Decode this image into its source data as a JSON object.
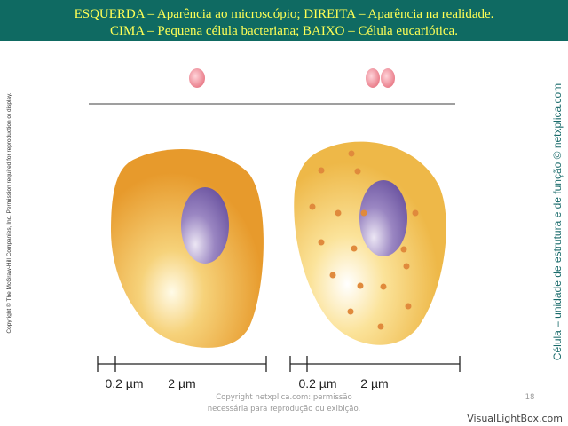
{
  "header": {
    "lines": [
      "ESQUERDA – Aparência ao microscópio; DIREITA – Aparência na realidade.",
      "CIMA – Pequena célula bacteriana; BAIXO – Célula eucariótica."
    ]
  },
  "copyright_side": "Copyright © The McGraw-Hill Companies, Inc. Permission required for reproduction or display.",
  "side_title": "Célula – unidade de estrutura e de função © netxplica.com",
  "scales": [
    {
      "labels": [
        "0.2 µm",
        "2 µm"
      ]
    },
    {
      "labels": [
        "0.2 µm",
        "2 µm"
      ]
    }
  ],
  "footer": {
    "lines": [
      "Copyright netxplica.com: permissão",
      "necessária para reprodução ou exibição."
    ],
    "page": "18"
  },
  "watermark": "VisualLightBox.com"
}
